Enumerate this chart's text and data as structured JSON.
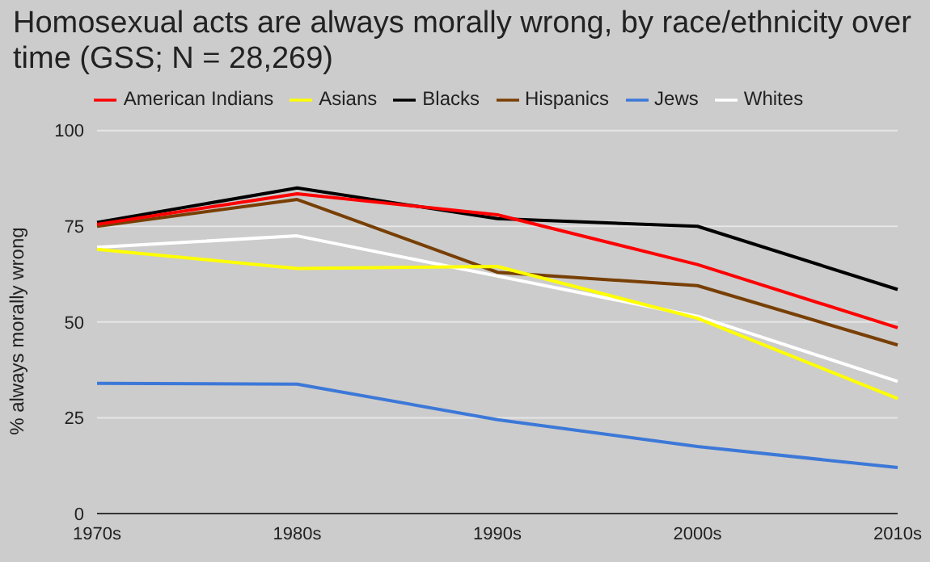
{
  "chart_data": {
    "type": "line",
    "title": "Homosexual acts are always morally wrong, by race/ethnicity over time (GSS; N = 28,269)",
    "ylabel": "% always morally wrong",
    "categories": [
      "1970s",
      "1980s",
      "1990s",
      "2000s",
      "2010s"
    ],
    "series": [
      {
        "name": "Whites",
        "color": "#ffffff",
        "values": [
          69.5,
          72.5,
          62,
          51.5,
          34.5
        ]
      },
      {
        "name": "Blacks",
        "color": "#000000",
        "values": [
          76,
          85,
          77,
          75,
          58.5
        ]
      },
      {
        "name": "Hispanics",
        "color": "#783f04",
        "values": [
          75,
          82,
          63,
          59.5,
          44
        ]
      },
      {
        "name": "Asians",
        "color": "#ffff00",
        "values": [
          69,
          64,
          64.5,
          51,
          30
        ]
      },
      {
        "name": "American Indians",
        "color": "#ff0000",
        "values": [
          75.5,
          83.5,
          78,
          65,
          48.5
        ]
      },
      {
        "name": "Jews",
        "color": "#3c78d8",
        "values": [
          34,
          33.8,
          24.5,
          17.5,
          12
        ]
      }
    ],
    "ylim": [
      0,
      100
    ],
    "yticks": [
      0,
      25,
      50,
      75,
      100
    ],
    "grid": "y",
    "legend": "top",
    "marker": "none",
    "line_style": "solid"
  }
}
